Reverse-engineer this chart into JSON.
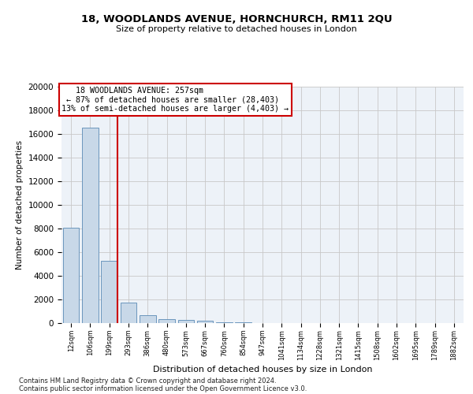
{
  "title1": "18, WOODLANDS AVENUE, HORNCHURCH, RM11 2QU",
  "title2": "Size of property relative to detached houses in London",
  "xlabel": "Distribution of detached houses by size in London",
  "ylabel": "Number of detached properties",
  "bar_labels": [
    "12sqm",
    "106sqm",
    "199sqm",
    "293sqm",
    "386sqm",
    "480sqm",
    "573sqm",
    "667sqm",
    "760sqm",
    "854sqm",
    "947sqm",
    "1041sqm",
    "1134sqm",
    "1228sqm",
    "1321sqm",
    "1415sqm",
    "1508sqm",
    "1602sqm",
    "1695sqm",
    "1789sqm",
    "1882sqm"
  ],
  "bar_values": [
    8100,
    16500,
    5300,
    1750,
    700,
    350,
    280,
    200,
    100,
    50,
    20,
    10,
    5,
    3,
    2,
    1,
    1,
    1,
    0,
    0,
    0
  ],
  "bar_color": "#c8d8e8",
  "bar_edge_color": "#5a8ab5",
  "annotation_box_color": "#cc0000",
  "vline_color": "#cc0000",
  "ylim": [
    0,
    20000
  ],
  "grid_color": "#c8c8c8",
  "background_color": "#edf2f8",
  "property_label": "18 WOODLANDS AVENUE: 257sqm",
  "line1": "← 87% of detached houses are smaller (28,403)",
  "line2": "13% of semi-detached houses are larger (4,403) →",
  "footer1": "Contains HM Land Registry data © Crown copyright and database right 2024.",
  "footer2": "Contains public sector information licensed under the Open Government Licence v3.0."
}
